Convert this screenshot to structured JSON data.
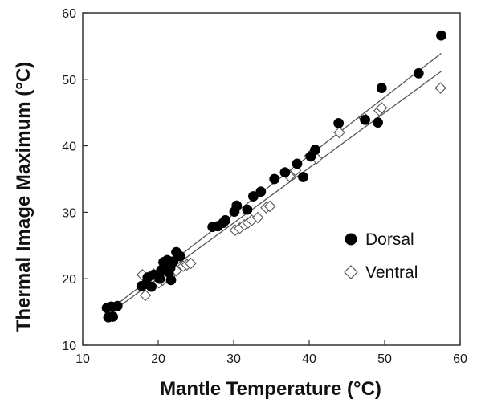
{
  "chart_data": {
    "type": "scatter",
    "title": "",
    "xlabel": "Mantle Temperature (°C)",
    "ylabel": "Thermal Image Maximum (°C)",
    "xlim": [
      10,
      60
    ],
    "ylim": [
      10,
      60
    ],
    "xticks": [
      "10",
      "20",
      "30",
      "40",
      "50",
      "60"
    ],
    "yticks": [
      "10",
      "20",
      "30",
      "40",
      "50",
      "60"
    ],
    "grid": false,
    "legend_position": "right",
    "series": [
      {
        "name": "Dorsal",
        "marker": "filled-circle",
        "color": "#000000",
        "points": [
          [
            13.2,
            15.6
          ],
          [
            13.4,
            14.2
          ],
          [
            13.8,
            15.8
          ],
          [
            14.0,
            14.3
          ],
          [
            14.6,
            15.9
          ],
          [
            17.8,
            18.9
          ],
          [
            18.4,
            19.2
          ],
          [
            18.6,
            20.2
          ],
          [
            19.1,
            18.8
          ],
          [
            19.4,
            20.6
          ],
          [
            20.2,
            20.0
          ],
          [
            20.4,
            21.3
          ],
          [
            20.7,
            22.5
          ],
          [
            21.2,
            22.8
          ],
          [
            21.4,
            21.0
          ],
          [
            21.6,
            21.6
          ],
          [
            21.7,
            19.8
          ],
          [
            22.0,
            22.6
          ],
          [
            22.4,
            24.0
          ],
          [
            22.9,
            23.4
          ],
          [
            27.2,
            27.8
          ],
          [
            27.9,
            27.9
          ],
          [
            28.6,
            28.4
          ],
          [
            28.9,
            28.8
          ],
          [
            30.1,
            30.1
          ],
          [
            30.4,
            31.0
          ],
          [
            31.8,
            30.4
          ],
          [
            32.6,
            32.4
          ],
          [
            33.6,
            33.1
          ],
          [
            35.4,
            35.0
          ],
          [
            36.8,
            36.0
          ],
          [
            38.4,
            37.3
          ],
          [
            39.2,
            35.3
          ],
          [
            40.2,
            38.4
          ],
          [
            40.8,
            39.4
          ],
          [
            43.9,
            43.4
          ],
          [
            47.4,
            43.9
          ],
          [
            49.1,
            43.5
          ],
          [
            49.6,
            48.7
          ],
          [
            54.5,
            50.9
          ],
          [
            57.5,
            56.6
          ]
        ]
      },
      {
        "name": "Ventral",
        "marker": "open-diamond",
        "color": "#555555",
        "points": [
          [
            17.9,
            20.6
          ],
          [
            18.3,
            17.5
          ],
          [
            18.9,
            20.3
          ],
          [
            19.4,
            20.7
          ],
          [
            20.1,
            19.4
          ],
          [
            20.6,
            19.8
          ],
          [
            21.1,
            20.1
          ],
          [
            21.6,
            20.5
          ],
          [
            22.4,
            21.2
          ],
          [
            23.3,
            21.9
          ],
          [
            23.8,
            22.1
          ],
          [
            24.3,
            22.3
          ],
          [
            30.2,
            27.3
          ],
          [
            30.8,
            27.6
          ],
          [
            31.4,
            28.1
          ],
          [
            31.9,
            28.4
          ],
          [
            32.4,
            28.8
          ],
          [
            33.2,
            29.2
          ],
          [
            34.3,
            30.7
          ],
          [
            34.8,
            30.9
          ],
          [
            37.4,
            35.4
          ],
          [
            38.2,
            36.3
          ],
          [
            40.1,
            38.5
          ],
          [
            41.0,
            38.1
          ],
          [
            44.0,
            42.0
          ],
          [
            47.3,
            44.2
          ],
          [
            49.3,
            45.3
          ],
          [
            49.6,
            45.7
          ],
          [
            57.4,
            48.7
          ]
        ]
      }
    ],
    "fit_lines": [
      {
        "series": "Dorsal",
        "x": [
          13.0,
          57.5
        ],
        "y": [
          14.8,
          53.9
        ]
      },
      {
        "series": "Ventral",
        "x": [
          13.0,
          57.5
        ],
        "y": [
          14.3,
          51.2
        ]
      }
    ]
  }
}
